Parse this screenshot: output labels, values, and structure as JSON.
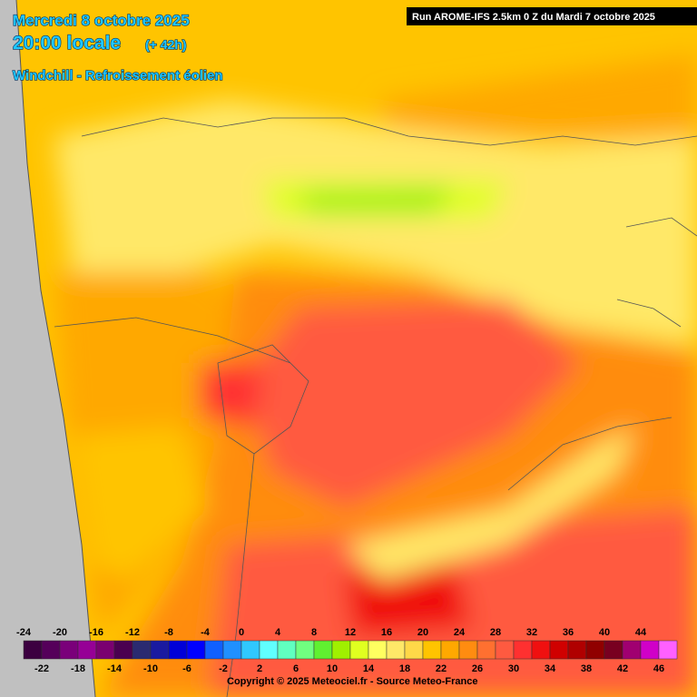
{
  "header": {
    "date": "Mercredi 8 octobre 2025",
    "time": "20:00 locale",
    "lead": "(+ 42h)",
    "parameter": "Windchill - Refroissement éolien",
    "run": "Run AROME-IFS 2.5km 0 Z du Mardi 7 octobre 2025"
  },
  "legend": {
    "values": [
      -24,
      -22,
      -20,
      -18,
      -16,
      -14,
      -12,
      -10,
      -8,
      -6,
      -4,
      -2,
      0,
      2,
      4,
      6,
      8,
      10,
      12,
      14,
      16,
      18,
      20,
      22,
      24,
      26,
      28,
      30,
      32,
      34,
      36,
      38,
      40,
      42,
      44,
      46
    ],
    "colors": [
      "#3c0040",
      "#55005a",
      "#7a007a",
      "#960096",
      "#7a0070",
      "#4a0050",
      "#2a2a70",
      "#1a1aa0",
      "#0000d8",
      "#0000ff",
      "#1060ff",
      "#2090ff",
      "#30c8ff",
      "#60ffff",
      "#60ffc0",
      "#70ff80",
      "#60f030",
      "#a0f000",
      "#e0ff20",
      "#ffff60",
      "#ffe868",
      "#ffd848",
      "#ffc400",
      "#ffa800",
      "#ff8c10",
      "#ff7030",
      "#ff5a40",
      "#ff3030",
      "#f01010",
      "#d00000",
      "#b00000",
      "#900000",
      "#780020",
      "#a00070",
      "#d000c8",
      "#ff60ff"
    ]
  },
  "footer": {
    "copyright": "Copyright © 2025 Meteociel.fr - Source Meteo-France"
  }
}
